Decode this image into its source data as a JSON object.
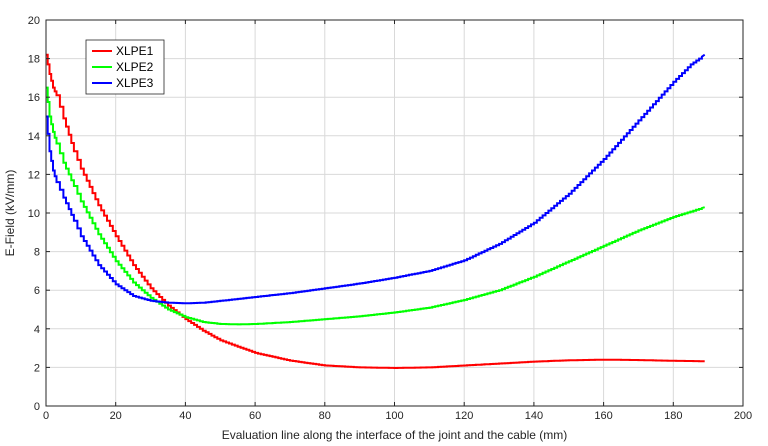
{
  "chart_data": {
    "type": "line",
    "title": "",
    "xlabel": "Evaluation line along the interface of the joint and the cable (mm)",
    "ylabel": "E-Field (kV/mm)",
    "xlim": [
      0,
      200
    ],
    "ylim": [
      0,
      20
    ],
    "xticks": [
      "0",
      "20",
      "40",
      "60",
      "80",
      "100",
      "120",
      "140",
      "160",
      "180",
      "200"
    ],
    "yticks": [
      "0",
      "2",
      "4",
      "6",
      "8",
      "10",
      "12",
      "14",
      "16",
      "18",
      "20"
    ],
    "grid": true,
    "legend_position": "top-left",
    "series": [
      {
        "name": "XLPE1",
        "color": "#ff0000",
        "x": [
          0,
          1,
          2,
          3,
          5,
          8,
          10,
          15,
          20,
          25,
          30,
          35,
          40,
          45,
          50,
          60,
          70,
          80,
          90,
          100,
          110,
          120,
          130,
          140,
          150,
          160,
          170,
          180,
          189
        ],
        "y": [
          18.2,
          17.2,
          16.5,
          16.1,
          14.9,
          13.2,
          12.3,
          10.4,
          8.8,
          7.3,
          6.1,
          5.2,
          4.5,
          3.9,
          3.4,
          2.75,
          2.35,
          2.1,
          2.0,
          1.97,
          2.0,
          2.1,
          2.2,
          2.3,
          2.37,
          2.4,
          2.38,
          2.34,
          2.32
        ]
      },
      {
        "name": "XLPE2",
        "color": "#00ff00",
        "x": [
          0,
          1,
          2,
          3,
          5,
          8,
          10,
          15,
          20,
          25,
          30,
          35,
          40,
          45,
          50,
          55,
          60,
          70,
          80,
          90,
          100,
          110,
          120,
          130,
          140,
          150,
          160,
          170,
          180,
          189
        ],
        "y": [
          16.5,
          15.0,
          14.2,
          13.6,
          12.6,
          11.4,
          10.6,
          8.9,
          7.5,
          6.4,
          5.6,
          5.0,
          4.6,
          4.35,
          4.25,
          4.23,
          4.25,
          4.35,
          4.5,
          4.65,
          4.85,
          5.1,
          5.5,
          6.0,
          6.7,
          7.5,
          8.3,
          9.1,
          9.8,
          10.3
        ]
      },
      {
        "name": "XLPE3",
        "color": "#0000ff",
        "x": [
          0,
          1,
          2,
          3,
          5,
          8,
          10,
          15,
          20,
          25,
          30,
          35,
          40,
          45,
          50,
          60,
          70,
          80,
          90,
          100,
          110,
          120,
          130,
          140,
          150,
          160,
          170,
          180,
          185,
          189
        ],
        "y": [
          15.0,
          13.2,
          12.2,
          11.6,
          10.8,
          9.6,
          8.8,
          7.3,
          6.3,
          5.7,
          5.45,
          5.35,
          5.32,
          5.35,
          5.45,
          5.65,
          5.85,
          6.1,
          6.35,
          6.65,
          7.0,
          7.55,
          8.4,
          9.5,
          11.0,
          12.8,
          14.8,
          16.8,
          17.7,
          18.2
        ]
      }
    ]
  }
}
